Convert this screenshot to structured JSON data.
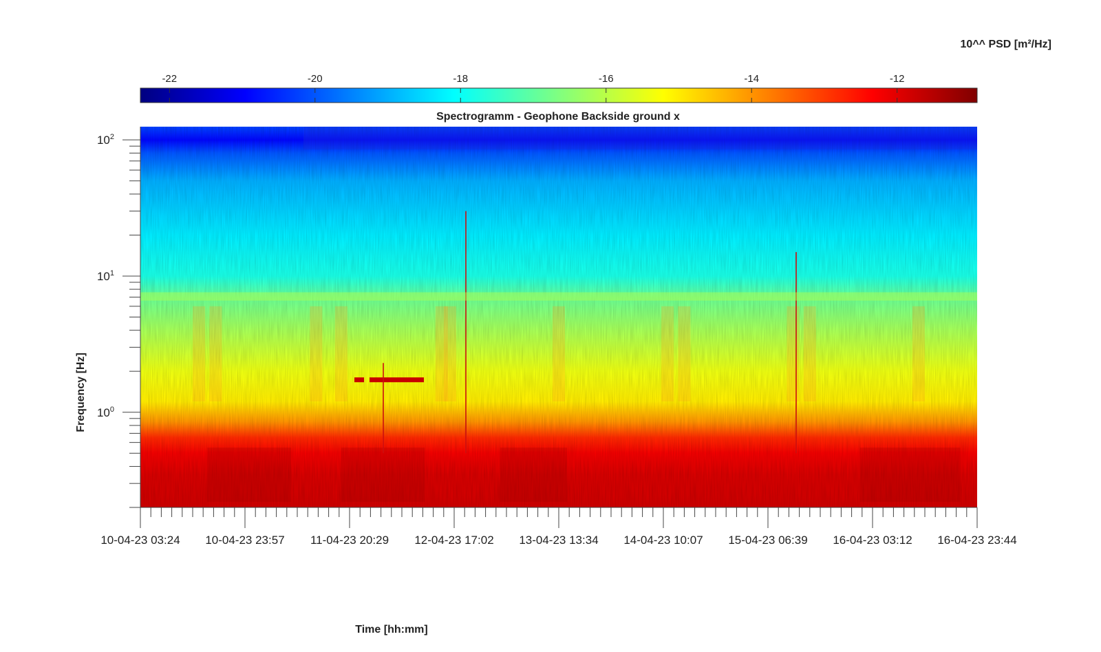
{
  "chart_data": {
    "type": "heatmap",
    "title": "Spectrogramm - Geophone Backside ground x",
    "xlabel": "Time [hh:mm]",
    "ylabel": "Frequency [Hz]",
    "colorbar_label": "10^^ PSD [m²/Hz]",
    "x_ticks": [
      "10-04-23 03:24",
      "10-04-23 23:57",
      "11-04-23 20:29",
      "12-04-23 17:02",
      "13-04-23 13:34",
      "14-04-23 10:07",
      "15-04-23 06:39",
      "16-04-23 03:12",
      "16-04-23 23:44"
    ],
    "y_scale": "log",
    "y_range": [
      0.2,
      125
    ],
    "y_ticks": [
      {
        "base": "10",
        "exp": "0",
        "value": 1
      },
      {
        "base": "10",
        "exp": "1",
        "value": 10
      },
      {
        "base": "10",
        "exp": "2",
        "value": 100
      }
    ],
    "colorbar_range": [
      -22.4,
      -10.9
    ],
    "colorbar_ticks": [
      -22,
      -20,
      -18,
      -16,
      -14,
      -12
    ],
    "colormap": "jet",
    "psd_profile_log10": [
      {
        "freq_hz": 0.2,
        "log_psd": -11.8
      },
      {
        "freq_hz": 0.35,
        "log_psd": -11.9
      },
      {
        "freq_hz": 0.5,
        "log_psd": -12.2
      },
      {
        "freq_hz": 0.65,
        "log_psd": -12.8
      },
      {
        "freq_hz": 0.85,
        "log_psd": -14.0
      },
      {
        "freq_hz": 1.2,
        "log_psd": -15.0
      },
      {
        "freq_hz": 2.0,
        "log_psd": -15.4
      },
      {
        "freq_hz": 4.0,
        "log_psd": -16.2
      },
      {
        "freq_hz": 7.0,
        "log_psd": -16.9
      },
      {
        "freq_hz": 10.0,
        "log_psd": -17.8
      },
      {
        "freq_hz": 20.0,
        "log_psd": -18.3
      },
      {
        "freq_hz": 50.0,
        "log_psd": -19.0
      },
      {
        "freq_hz": 80.0,
        "log_psd": -20.0
      },
      {
        "freq_hz": 100.0,
        "log_psd": -20.9
      },
      {
        "freq_hz": 125.0,
        "log_psd": -20.2
      }
    ],
    "grid": false,
    "colorbar_position": "top"
  }
}
